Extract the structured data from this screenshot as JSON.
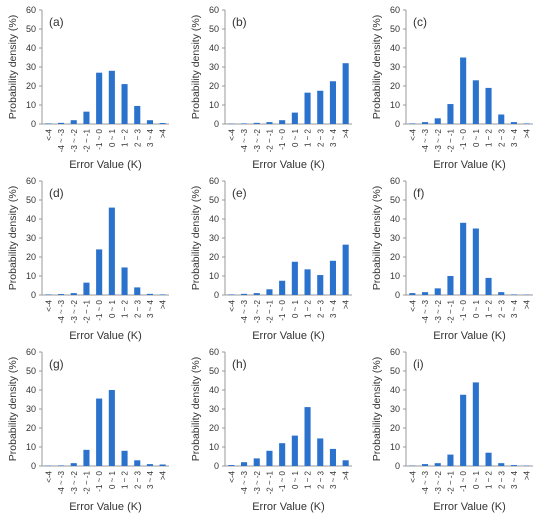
{
  "colors": {
    "bar": "#2b72cc",
    "axis": "#999999",
    "text": "#333333"
  },
  "chart_data": [
    {
      "panel": "(a)",
      "type": "bar",
      "categories": [
        "<-4",
        "-4 ~ -3",
        "-3 ~ -2",
        "-2 ~ -1",
        "-1 ~ 0",
        "0 ~ 1",
        "1 ~ 2",
        "2 ~ 3",
        "3 ~ 4",
        ">4"
      ],
      "values": [
        0.3,
        0.6,
        2,
        6.5,
        27,
        28,
        21,
        9.5,
        2,
        0.5
      ],
      "xlabel": "Error Value (K)",
      "ylabel": "Probability density (%)",
      "yticks": [
        "0",
        "10",
        "20",
        "30",
        "40",
        "50",
        "60"
      ],
      "ylim": [
        0,
        60
      ],
      "grid": false
    },
    {
      "panel": "(b)",
      "type": "bar",
      "categories": [
        "<-4",
        "-4 ~ -3",
        "-3 ~ -2",
        "-2 ~ -1",
        "-1 ~ 0",
        "0 ~ 1",
        "1 ~ 2",
        "2 ~ 3",
        "3 ~ 4",
        ">4"
      ],
      "values": [
        0.2,
        0.3,
        0.6,
        1,
        2,
        6,
        16.5,
        17.5,
        22.5,
        32
      ],
      "xlabel": "Error Value (K)",
      "ylabel": "Probability density (%)",
      "yticks": [
        "0",
        "10",
        "20",
        "30",
        "40",
        "50",
        "60"
      ],
      "ylim": [
        0,
        60
      ],
      "grid": false
    },
    {
      "panel": "(c)",
      "type": "bar",
      "categories": [
        "<-4",
        "-4 ~ -3",
        "-3 ~ -2",
        "-2 ~ -1",
        "-1 ~ 0",
        "0 ~ 1",
        "1 ~ 2",
        "2 ~ 3",
        "3 ~ 4",
        ">4"
      ],
      "values": [
        0.3,
        1,
        3,
        10.5,
        35,
        23,
        19,
        5,
        1,
        0.3
      ],
      "xlabel": "Error Value (K)",
      "ylabel": "Probability density (%)",
      "yticks": [
        "0",
        "10",
        "20",
        "30",
        "40",
        "50",
        "60"
      ],
      "ylim": [
        0,
        60
      ],
      "grid": false
    },
    {
      "panel": "(d)",
      "type": "bar",
      "categories": [
        "<-4",
        "-4 ~ -3",
        "-3 ~ -2",
        "-2 ~ -1",
        "-1 ~ 0",
        "0 ~ 1",
        "1 ~ 2",
        "2 ~ 3",
        "3 ~ 4",
        ">4"
      ],
      "values": [
        0.3,
        0.5,
        1,
        6.5,
        24,
        46,
        14.5,
        4,
        0.6,
        0.3
      ],
      "xlabel": "Error Value (K)",
      "ylabel": "Probability density (%)",
      "yticks": [
        "0",
        "10",
        "20",
        "30",
        "40",
        "50",
        "60"
      ],
      "ylim": [
        0,
        60
      ],
      "grid": false
    },
    {
      "panel": "(e)",
      "type": "bar",
      "categories": [
        "<-4",
        "-4 ~ -3",
        "-3 ~ -2",
        "-2 ~ -1",
        "-1 ~ 0",
        "0 ~ 1",
        "1 ~ 2",
        "2 ~ 3",
        "3 ~ 4",
        ">4"
      ],
      "values": [
        0.3,
        0.6,
        1,
        3,
        7.5,
        17.5,
        13.5,
        10.5,
        18,
        26.5
      ],
      "xlabel": "Error Value (K)",
      "ylabel": "Probability density (%)",
      "yticks": [
        "0",
        "10",
        "20",
        "30",
        "40",
        "50",
        "60"
      ],
      "ylim": [
        0,
        60
      ],
      "grid": false
    },
    {
      "panel": "(f)",
      "type": "bar",
      "categories": [
        "<-4",
        "-4 ~ -3",
        "-3 ~ -2",
        "-2 ~ -1",
        "-1 ~ 0",
        "0 ~ 1",
        "1 ~ 2",
        "2 ~ 3",
        "3 ~ 4",
        ">4"
      ],
      "values": [
        1,
        1.5,
        3.5,
        10,
        38,
        35,
        9,
        1.5,
        0.3,
        0.2
      ],
      "xlabel": "Error Value (K)",
      "ylabel": "Probability density (%)",
      "yticks": [
        "0",
        "10",
        "20",
        "30",
        "40",
        "50",
        "60"
      ],
      "ylim": [
        0,
        60
      ],
      "grid": false
    },
    {
      "panel": "(g)",
      "type": "bar",
      "categories": [
        "<-4",
        "-4 ~ -3",
        "-3 ~ -2",
        "-2 ~ -1",
        "-1 ~ 0",
        "0 ~ 1",
        "1 ~ 2",
        "2 ~ 3",
        "3 ~ 4",
        ">4"
      ],
      "values": [
        0.2,
        0.3,
        1.5,
        8.5,
        35.5,
        40,
        8,
        3,
        1,
        0.8
      ],
      "xlabel": "Error Value (K)",
      "ylabel": "Probability density (%)",
      "yticks": [
        "0",
        "10",
        "20",
        "30",
        "40",
        "50",
        "60"
      ],
      "ylim": [
        0,
        60
      ],
      "grid": false
    },
    {
      "panel": "(h)",
      "type": "bar",
      "categories": [
        "<-4",
        "-4 ~ -3",
        "-3 ~ -2",
        "-2 ~ -1",
        "-1 ~ 0",
        "0 ~ 1",
        "1 ~ 2",
        "2 ~ 3",
        "3 ~ 4",
        ">4"
      ],
      "values": [
        0.5,
        2,
        4,
        8,
        12,
        16,
        31,
        14.5,
        9,
        3
      ],
      "xlabel": "Error Value (K)",
      "ylabel": "Probability density (%)",
      "yticks": [
        "0",
        "10",
        "20",
        "30",
        "40",
        "50",
        "60"
      ],
      "ylim": [
        0,
        60
      ],
      "grid": false
    },
    {
      "panel": "(i)",
      "type": "bar",
      "categories": [
        "<-4",
        "-4 ~ -3",
        "-3 ~ -2",
        "-2 ~ -1",
        "-1 ~ 0",
        "0 ~ 1",
        "1 ~ 2",
        "2 ~ 3",
        "3 ~ 4",
        ">4"
      ],
      "values": [
        0.2,
        1,
        1.5,
        6,
        37.5,
        44,
        7,
        1.5,
        0.5,
        0.2
      ],
      "xlabel": "Error Value (K)",
      "ylabel": "Probability density (%)",
      "yticks": [
        "0",
        "10",
        "20",
        "30",
        "40",
        "50",
        "60"
      ],
      "ylim": [
        0,
        60
      ],
      "grid": false
    }
  ]
}
